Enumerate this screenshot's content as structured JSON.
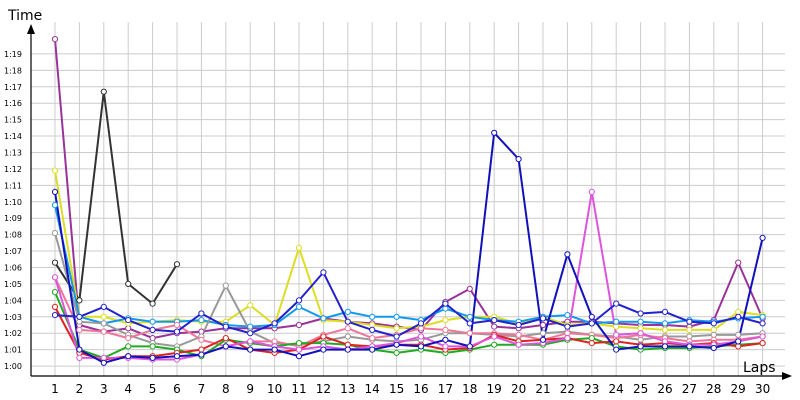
{
  "chart_data": {
    "type": "line",
    "ylabel": "Time",
    "xlabel": "Laps",
    "x": [
      1,
      2,
      3,
      4,
      5,
      6,
      7,
      8,
      9,
      10,
      11,
      12,
      13,
      14,
      15,
      16,
      17,
      18,
      19,
      20,
      21,
      22,
      23,
      24,
      25,
      26,
      27,
      28,
      29,
      30
    ],
    "y_ticks": [
      "1:00",
      "1:01",
      "1:02",
      "1:03",
      "1:04",
      "1:05",
      "1:06",
      "1:07",
      "1:08",
      "1:09",
      "1:10",
      "1:11",
      "1:12",
      "1:13",
      "1:14",
      "1:15",
      "1:16",
      "1:17",
      "1:18",
      "1:19"
    ],
    "ylim": [
      59,
      80.5
    ],
    "grid": true,
    "series": [
      {
        "color": "#993399",
        "values": [
          79.9,
          62.5,
          62.1,
          62.3,
          61.7,
          62.0,
          62.1,
          62.3,
          62.3,
          62.3,
          62.5,
          62.9,
          62.7,
          62.6,
          62.4,
          62.2,
          63.9,
          64.7,
          62.4,
          62.3,
          62.5,
          62.7,
          62.7,
          62.6,
          62.5,
          62.5,
          62.4,
          62.8,
          66.3,
          62.9
        ]
      },
      {
        "color": "#333333",
        "values": [
          66.3,
          64.0,
          76.7,
          65.0,
          63.8,
          66.2,
          null,
          null,
          null,
          null,
          null,
          null,
          null,
          null,
          null,
          null,
          null,
          null,
          null,
          null,
          null,
          null,
          null,
          null,
          null,
          null,
          null,
          null,
          null,
          null
        ]
      },
      {
        "color": "#dddd22",
        "values": [
          71.9,
          63.0,
          63.0,
          62.6,
          62.7,
          62.8,
          62.7,
          62.7,
          63.7,
          62.5,
          67.2,
          62.8,
          62.7,
          62.5,
          62.3,
          62.4,
          62.8,
          63.0,
          63.0,
          62.6,
          63.0,
          62.5,
          62.6,
          62.4,
          62.3,
          62.2,
          62.2,
          62.2,
          63.3,
          63.1
        ]
      },
      {
        "color": "#1199ee",
        "values": [
          69.8,
          63.0,
          62.6,
          62.9,
          62.7,
          62.7,
          62.8,
          62.5,
          62.4,
          62.5,
          63.6,
          62.9,
          63.3,
          63.0,
          63.0,
          62.8,
          63.5,
          63.0,
          62.8,
          62.7,
          63.0,
          63.1,
          62.6,
          62.7,
          62.7,
          62.6,
          62.8,
          62.7,
          62.9,
          63.0
        ]
      },
      {
        "color": "#999999",
        "values": [
          68.1,
          62.7,
          62.6,
          61.9,
          61.4,
          61.2,
          61.8,
          64.9,
          62.1,
          61.4,
          61.3,
          61.5,
          61.8,
          61.6,
          61.5,
          61.6,
          62.0,
          62.0,
          61.9,
          61.8,
          62.0,
          62.1,
          61.9,
          61.8,
          61.6,
          61.8,
          61.8,
          61.9,
          61.9,
          62.0
        ]
      },
      {
        "color": "#ee7799",
        "values": [
          65.4,
          62.2,
          62.1,
          61.7,
          62.2,
          62.5,
          61.6,
          61.2,
          61.5,
          61.5,
          61.2,
          61.9,
          62.3,
          61.7,
          61.9,
          62.3,
          62.2,
          62.0,
          62.0,
          61.9,
          61.6,
          62.0,
          61.9,
          61.7,
          61.9,
          61.7,
          61.5,
          61.6,
          61.6,
          61.8
        ]
      },
      {
        "color": "#22aa22",
        "values": [
          64.5,
          61.0,
          60.5,
          61.2,
          61.2,
          61.0,
          60.6,
          61.6,
          61.4,
          61.2,
          61.4,
          61.4,
          61.3,
          61.0,
          60.8,
          61.0,
          60.8,
          61.0,
          61.3,
          61.3,
          61.3,
          61.6,
          61.7,
          61.2,
          61.0,
          61.1,
          61.1,
          61.2,
          61.3,
          61.4
        ]
      },
      {
        "color": "#dd2222",
        "values": [
          63.6,
          60.8,
          60.4,
          60.6,
          60.6,
          60.8,
          61.0,
          61.7,
          61.0,
          60.8,
          61.0,
          61.8,
          61.3,
          61.2,
          61.3,
          61.3,
          61.0,
          61.1,
          61.9,
          61.5,
          61.6,
          61.7,
          61.4,
          61.5,
          61.3,
          61.4,
          61.3,
          61.4,
          61.2,
          61.4
        ]
      },
      {
        "color": "#dd55dd",
        "values": [
          65.4,
          60.5,
          60.5,
          60.5,
          60.4,
          60.4,
          60.7,
          61.2,
          61.5,
          61.2,
          61.0,
          61.2,
          61.0,
          61.2,
          61.4,
          61.8,
          61.2,
          61.2,
          61.8,
          61.3,
          61.4,
          61.7,
          70.6,
          61.9,
          62.0,
          61.5,
          61.3,
          61.3,
          61.5,
          61.8
        ]
      },
      {
        "color": "#1111bb",
        "values": [
          70.6,
          61.0,
          60.2,
          60.6,
          60.5,
          60.6,
          60.7,
          61.2,
          61.0,
          61.0,
          60.6,
          61.0,
          61.0,
          61.0,
          61.3,
          61.2,
          61.6,
          61.2,
          74.2,
          72.6,
          61.6,
          66.8,
          63.0,
          61.0,
          61.2,
          61.2,
          61.2,
          61.1,
          61.5,
          67.8
        ]
      },
      {
        "color": "#2222cc",
        "values": [
          63.1,
          63.0,
          63.6,
          62.8,
          62.2,
          62.1,
          63.2,
          62.4,
          62.0,
          62.6,
          64.0,
          65.7,
          62.7,
          62.2,
          61.8,
          62.6,
          63.8,
          62.6,
          62.8,
          62.5,
          62.9,
          62.4,
          62.6,
          63.8,
          63.2,
          63.3,
          62.7,
          62.6,
          63.0,
          62.6
        ]
      }
    ]
  }
}
